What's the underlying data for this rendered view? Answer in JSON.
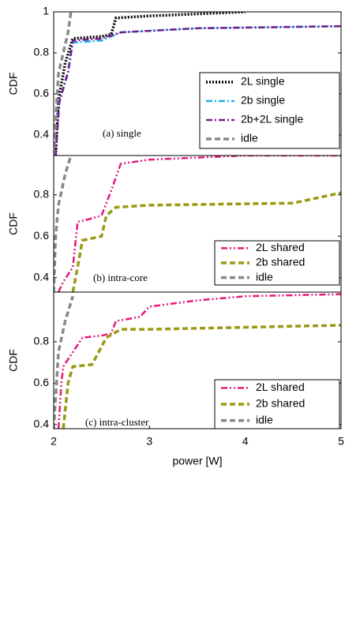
{
  "chart_data": [
    {
      "type": "line",
      "annotation": "(a) single",
      "ylabel": "CDF",
      "xlim": [
        2,
        5
      ],
      "ylim": [
        0.3,
        1.0
      ],
      "yticks": [
        0.4,
        0.6,
        0.8,
        1
      ],
      "series": [
        {
          "name": "2L single",
          "color": "#000000",
          "style": "dotted",
          "x": [
            2.02,
            2.05,
            2.12,
            2.2,
            2.5,
            2.6,
            2.65,
            3.0,
            4.0
          ],
          "values": [
            0.3,
            0.57,
            0.75,
            0.87,
            0.88,
            0.89,
            0.97,
            0.98,
            1.0
          ]
        },
        {
          "name": "2b single",
          "color": "#1fb0e6",
          "style": "dashdot",
          "x": [
            2.02,
            2.05,
            2.15,
            2.2,
            2.5,
            2.7,
            3.5,
            5.0
          ],
          "values": [
            0.3,
            0.55,
            0.7,
            0.85,
            0.86,
            0.9,
            0.92,
            0.93
          ]
        },
        {
          "name": "2b+2L single",
          "color": "#7a1a8a",
          "style": "dashdot",
          "x": [
            2.02,
            2.06,
            2.15,
            2.2,
            2.5,
            2.7,
            3.5,
            5.0
          ],
          "values": [
            0.3,
            0.56,
            0.71,
            0.86,
            0.87,
            0.9,
            0.92,
            0.93
          ]
        },
        {
          "name": "idle",
          "color": "#888888",
          "style": "dashed",
          "x": [
            2.0,
            2.05,
            2.15,
            2.18
          ],
          "values": [
            0.3,
            0.7,
            0.9,
            1.0
          ]
        }
      ]
    },
    {
      "type": "line",
      "annotation": "(b) intra-core",
      "ylabel": "CDF",
      "xlim": [
        2,
        5
      ],
      "ylim": [
        0.33,
        0.99
      ],
      "yticks": [
        0.4,
        0.6,
        0.8
      ],
      "series": [
        {
          "name": "2L shared",
          "color": "#e6197a",
          "style": "dashdotdot",
          "x": [
            2.05,
            2.1,
            2.2,
            2.25,
            2.35,
            2.5,
            2.6,
            2.7,
            3.0,
            3.5,
            4.0,
            5.0
          ],
          "values": [
            0.33,
            0.38,
            0.45,
            0.67,
            0.68,
            0.7,
            0.82,
            0.95,
            0.97,
            0.98,
            0.99,
            0.99
          ]
        },
        {
          "name": "2b shared",
          "color": "#9a9a12",
          "style": "dashed",
          "x": [
            2.2,
            2.25,
            2.3,
            2.5,
            2.55,
            2.65,
            3.0,
            4.5,
            5.0
          ],
          "values": [
            0.33,
            0.45,
            0.58,
            0.6,
            0.7,
            0.74,
            0.75,
            0.76,
            0.81
          ]
        },
        {
          "name": "idle",
          "color": "#888888",
          "style": "dashed",
          "x": [
            2.0,
            2.02,
            2.05,
            2.12,
            2.18
          ],
          "values": [
            0.33,
            0.6,
            0.75,
            0.9,
            0.99
          ]
        }
      ]
    },
    {
      "type": "line",
      "annotation": "(c) intra-cluster",
      "ylabel": "CDF",
      "xlabel": "power [W]",
      "xlim": [
        2,
        5
      ],
      "ylim": [
        0.38,
        1.04
      ],
      "yticks": [
        0.4,
        0.6,
        0.8
      ],
      "xticks": [
        2,
        3,
        4,
        5
      ],
      "series": [
        {
          "name": "2L shared",
          "color": "#e6197a",
          "style": "dashdotdot",
          "x": [
            2.05,
            2.08,
            2.1,
            2.2,
            2.3,
            2.5,
            2.6,
            2.65,
            2.9,
            3.0,
            3.5,
            4.0,
            5.0
          ],
          "values": [
            0.38,
            0.6,
            0.68,
            0.75,
            0.82,
            0.83,
            0.84,
            0.9,
            0.92,
            0.97,
            1.0,
            1.02,
            1.03
          ]
        },
        {
          "name": "2b shared",
          "color": "#9a9a12",
          "style": "dashed",
          "x": [
            2.1,
            2.15,
            2.2,
            2.4,
            2.55,
            2.7,
            3.0,
            4.0,
            5.0
          ],
          "values": [
            0.38,
            0.6,
            0.68,
            0.69,
            0.82,
            0.86,
            0.86,
            0.87,
            0.88
          ]
        },
        {
          "name": "idle",
          "color": "#888888",
          "style": "dashed",
          "x": [
            2.0,
            2.03,
            2.05,
            2.12,
            2.2
          ],
          "values": [
            0.38,
            0.6,
            0.75,
            0.9,
            1.02
          ]
        }
      ]
    }
  ]
}
